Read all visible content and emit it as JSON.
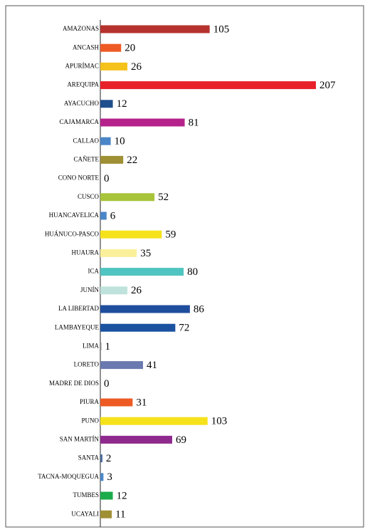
{
  "chart_data": {
    "type": "bar",
    "categories": [
      "AMAZONAS",
      "ANCASH",
      "APURÍMAC",
      "AREQUIPA",
      "AYACUCHO",
      "CAJAMARCA",
      "CALLAO",
      "CAÑETE",
      "CONO NORTE",
      "CUSCO",
      "HUANCAVELICA",
      "HUÁNUCO-PASCO",
      "HUAURA",
      "ICA",
      "JUNÍN",
      "LA LIBERTAD",
      "LAMBAYEQUE",
      "LIMA",
      "LORETO",
      "MADRE DE DIOS",
      "PIURA",
      "PUNO",
      "SAN MARTÍN",
      "SANTA",
      "TACNA-MOQUEGUA",
      "TUMBES",
      "UCAYALI"
    ],
    "values": [
      105,
      20,
      26,
      207,
      12,
      81,
      10,
      22,
      0,
      52,
      6,
      59,
      35,
      80,
      26,
      86,
      72,
      1,
      41,
      0,
      31,
      103,
      69,
      2,
      3,
      12,
      11
    ],
    "colors": [
      "#b5322e",
      "#ee5a24",
      "#f5c21b",
      "#e8202a",
      "#1f4e8c",
      "#b5228c",
      "#4a86c8",
      "#a09035",
      "#999999",
      "#a8c43a",
      "#4a86c8",
      "#f5e21b",
      "#fbf09a",
      "#4fc4c0",
      "#bfe3dc",
      "#1f4e9c",
      "#1a52a0",
      "#888888",
      "#6a7ab0",
      "#999999",
      "#ee5a24",
      "#f5e21b",
      "#8e2a8e",
      "#4a6a9a",
      "#4a86c8",
      "#1aab4a",
      "#a09035"
    ]
  }
}
